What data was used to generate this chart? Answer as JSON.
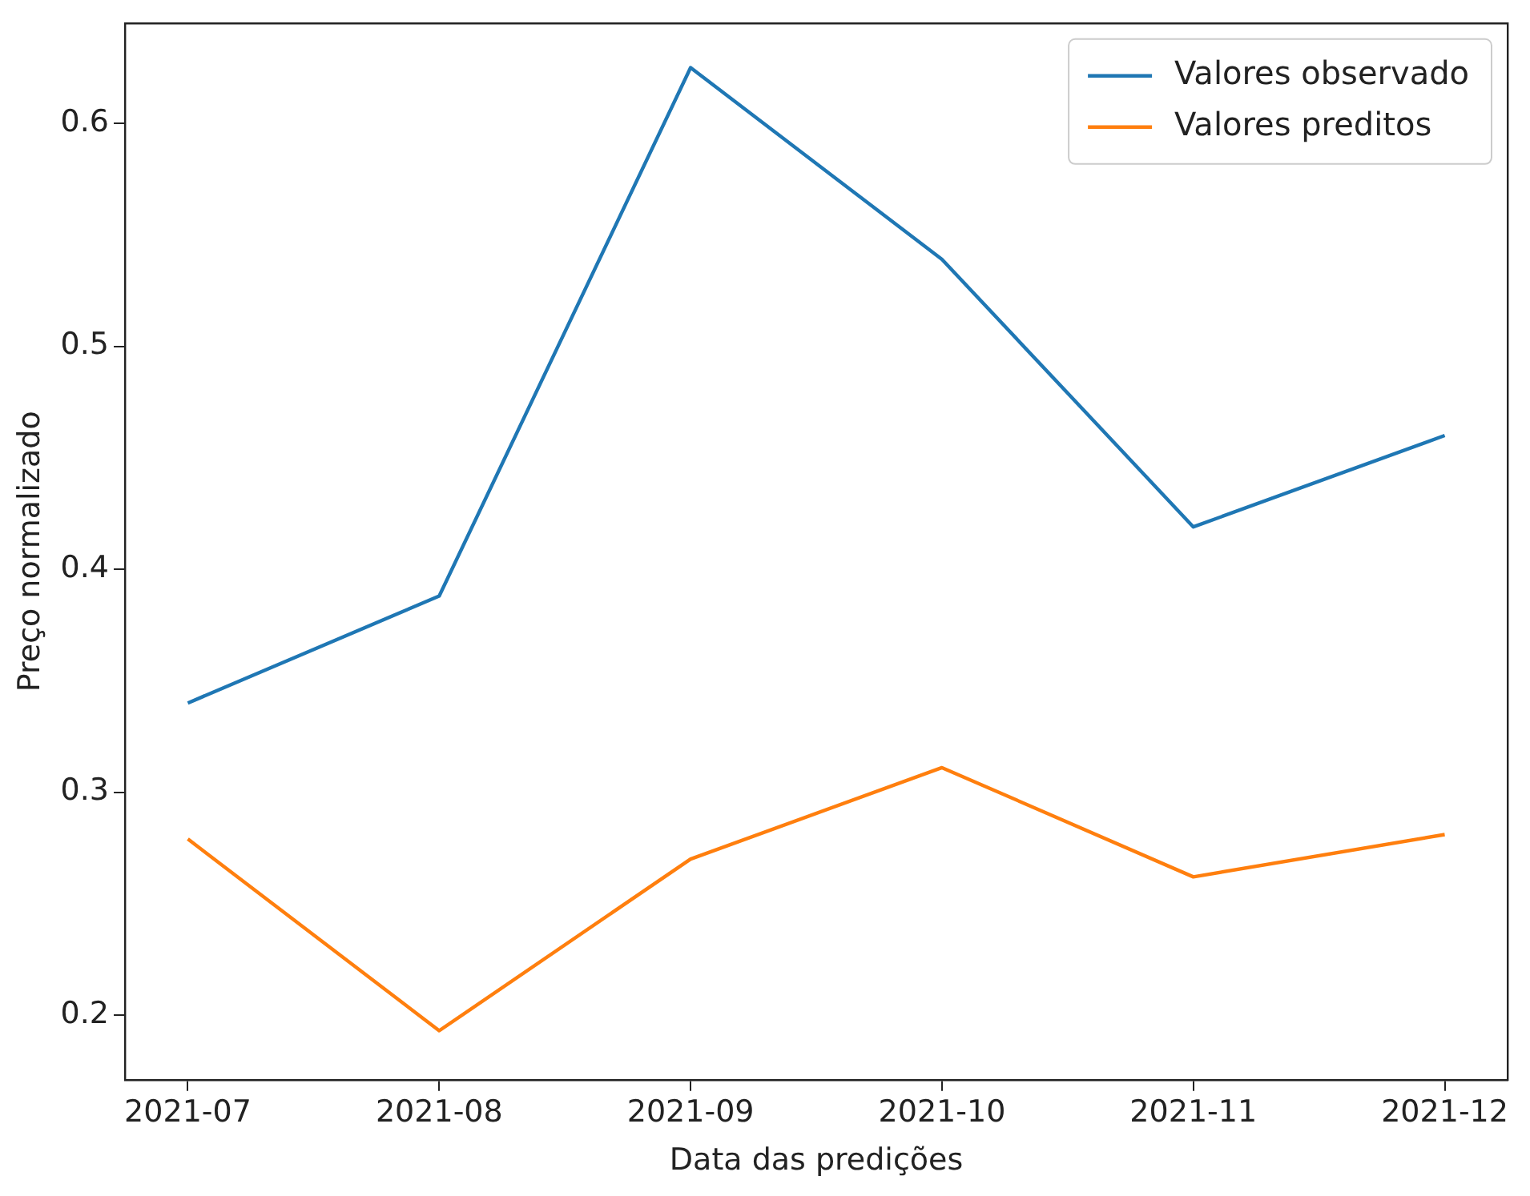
{
  "chart_data": {
    "type": "line",
    "xlabel": "Data das predições",
    "ylabel": "Preço normalizado",
    "categories": [
      "2021-07",
      "2021-08",
      "2021-09",
      "2021-10",
      "2021-11",
      "2021-12"
    ],
    "series": [
      {
        "name": "Valores observado",
        "color": "#1f77b4",
        "values": [
          0.34,
          0.388,
          0.625,
          0.539,
          0.419,
          0.46
        ]
      },
      {
        "name": "Valores preditos",
        "color": "#ff7f0e",
        "values": [
          0.279,
          0.193,
          0.27,
          0.311,
          0.262,
          0.281
        ]
      }
    ],
    "ylim": [
      0.171,
      0.645
    ],
    "yticks": [
      0.2,
      0.3,
      0.4,
      0.5,
      0.6
    ],
    "grid": false,
    "legend": "top right",
    "marker": "none",
    "line_style": "solid"
  }
}
